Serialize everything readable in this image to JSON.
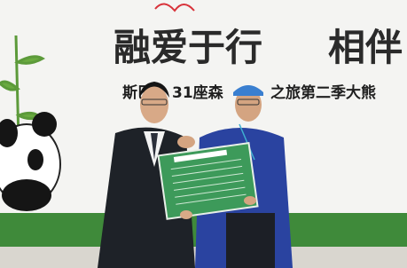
{
  "banner": {
    "headline": "融爱于行",
    "headline_partial": "相伴",
    "subline_left": "斯巴",
    "subline_mid": "31座森",
    "subline_right": "之旅第二季大熊"
  }
}
